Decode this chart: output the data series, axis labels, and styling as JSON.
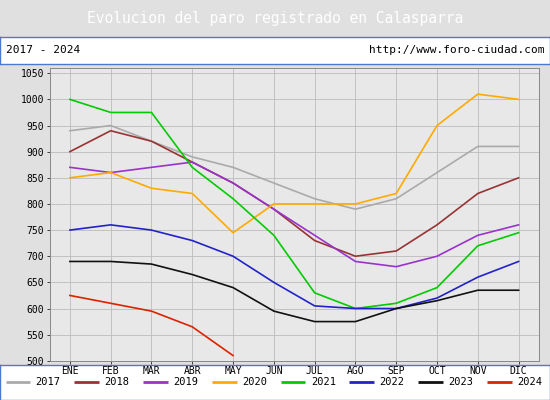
{
  "title": "Evolucion del paro registrado en Calasparra",
  "title_bg": "#4a7acd",
  "subtitle_left": "2017 - 2024",
  "subtitle_right": "http://www.foro-ciudad.com",
  "months": [
    "ENE",
    "FEB",
    "MAR",
    "ABR",
    "MAY",
    "JUN",
    "JUL",
    "AGO",
    "SEP",
    "OCT",
    "NOV",
    "DIC"
  ],
  "ylim": [
    500,
    1060
  ],
  "yticks": [
    500,
    550,
    600,
    650,
    700,
    750,
    800,
    850,
    900,
    950,
    1000,
    1050
  ],
  "series": {
    "2017": {
      "color": "#aaaaaa",
      "values": [
        940,
        950,
        920,
        890,
        870,
        840,
        810,
        790,
        810,
        860,
        910,
        910
      ]
    },
    "2018": {
      "color": "#993333",
      "values": [
        900,
        940,
        920,
        880,
        840,
        790,
        730,
        700,
        710,
        760,
        820,
        850
      ]
    },
    "2019": {
      "color": "#9933cc",
      "values": [
        870,
        860,
        870,
        880,
        840,
        790,
        740,
        690,
        680,
        700,
        740,
        760
      ]
    },
    "2020": {
      "color": "#ffaa00",
      "values": [
        850,
        860,
        830,
        820,
        745,
        800,
        800,
        800,
        820,
        950,
        1010,
        1000
      ]
    },
    "2021": {
      "color": "#00cc00",
      "values": [
        1000,
        975,
        975,
        870,
        810,
        740,
        630,
        600,
        610,
        640,
        720,
        745
      ]
    },
    "2022": {
      "color": "#2222cc",
      "values": [
        750,
        760,
        750,
        730,
        700,
        650,
        605,
        600,
        600,
        620,
        660,
        690
      ]
    },
    "2023": {
      "color": "#111111",
      "values": [
        690,
        690,
        685,
        665,
        640,
        595,
        575,
        575,
        600,
        615,
        635,
        635
      ]
    },
    "2024": {
      "color": "#dd2200",
      "values": [
        625,
        610,
        595,
        565,
        510,
        null,
        null,
        null,
        null,
        null,
        null,
        null
      ]
    }
  },
  "legend_order": [
    "2017",
    "2018",
    "2019",
    "2020",
    "2021",
    "2022",
    "2023",
    "2024"
  ],
  "fig_bg": "#e0e0e0",
  "plot_bg": "#e8e8e8",
  "grid_color": "#bbbbbb"
}
